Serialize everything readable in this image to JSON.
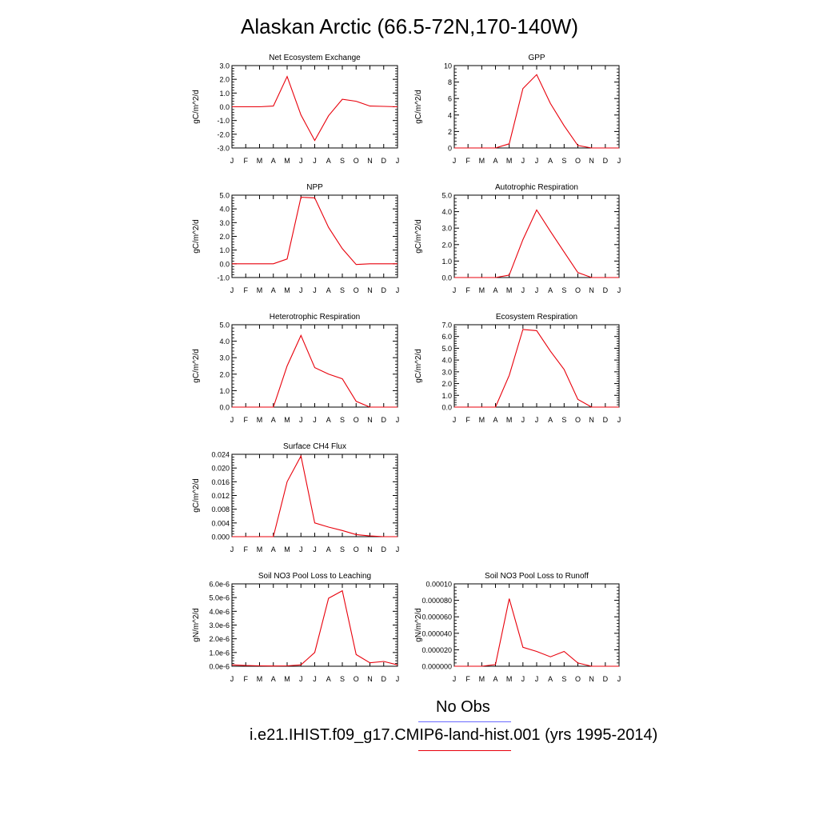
{
  "title": "Alaskan Arctic (66.5-72N,170-140W)",
  "colors": {
    "model": "#e8000b",
    "obs": "#6a6aff",
    "axis": "#000000"
  },
  "legend": {
    "obs_label": "No Obs",
    "model_label": "i.e21.IHIST.f09_g17.CMIP6-land-hist.001 (yrs 1995-2014)"
  },
  "chart_data": [
    {
      "type": "line",
      "title": "Net Ecosystem Exchange",
      "ylabel": "gC/m^2/d",
      "categories": [
        "J",
        "F",
        "M",
        "A",
        "M",
        "J",
        "J",
        "A",
        "S",
        "O",
        "N",
        "D",
        "J"
      ],
      "ylim": [
        -3.0,
        3.0
      ],
      "yticks": [
        "3.0",
        "2.0",
        "1.0",
        "0.0",
        "-1.0",
        "-2.0",
        "-3.0"
      ],
      "values": [
        0.0,
        0.0,
        0.0,
        0.05,
        2.2,
        -0.6,
        -2.45,
        -0.65,
        0.55,
        0.4,
        0.05,
        0.03,
        0.0
      ]
    },
    {
      "type": "line",
      "title": "GPP",
      "ylabel": "gC/m^2/d",
      "categories": [
        "J",
        "F",
        "M",
        "A",
        "M",
        "J",
        "J",
        "A",
        "S",
        "O",
        "N",
        "D",
        "J"
      ],
      "ylim": [
        0,
        10
      ],
      "yticks": [
        "10",
        "8",
        "6",
        "4",
        "2",
        "0"
      ],
      "values": [
        0.0,
        0.0,
        0.0,
        0.0,
        0.5,
        7.2,
        8.9,
        5.4,
        2.7,
        0.3,
        0.0,
        0.0,
        0.0
      ]
    },
    {
      "type": "line",
      "title": "NPP",
      "ylabel": "gC/m^2/d",
      "categories": [
        "J",
        "F",
        "M",
        "A",
        "M",
        "J",
        "J",
        "A",
        "S",
        "O",
        "N",
        "D",
        "J"
      ],
      "ylim": [
        -1.0,
        5.0
      ],
      "yticks": [
        "5.0",
        "4.0",
        "3.0",
        "2.0",
        "1.0",
        "0.0",
        "-1.0"
      ],
      "values": [
        0.0,
        0.0,
        0.0,
        0.0,
        0.35,
        4.85,
        4.8,
        2.65,
        1.1,
        -0.05,
        0.0,
        0.0,
        0.0
      ]
    },
    {
      "type": "line",
      "title": "Autotrophic Respiration",
      "ylabel": "gC/m^2/d",
      "categories": [
        "J",
        "F",
        "M",
        "A",
        "M",
        "J",
        "J",
        "A",
        "S",
        "O",
        "N",
        "D",
        "J"
      ],
      "ylim": [
        0,
        5.0
      ],
      "yticks": [
        "5.0",
        "4.0",
        "3.0",
        "2.0",
        "1.0",
        "0.0"
      ],
      "values": [
        0.0,
        0.0,
        0.0,
        0.0,
        0.15,
        2.3,
        4.1,
        2.8,
        1.55,
        0.3,
        0.0,
        0.0,
        0.0
      ]
    },
    {
      "type": "line",
      "title": "Heterotrophic Respiration",
      "ylabel": "gC/m^2/d",
      "categories": [
        "J",
        "F",
        "M",
        "A",
        "M",
        "J",
        "J",
        "A",
        "S",
        "O",
        "N",
        "D",
        "J"
      ],
      "ylim": [
        0,
        5.0
      ],
      "yticks": [
        "5.0",
        "4.0",
        "3.0",
        "2.0",
        "1.0",
        "0.0"
      ],
      "values": [
        0.0,
        0.0,
        0.0,
        0.0,
        2.5,
        4.35,
        2.4,
        2.0,
        1.72,
        0.35,
        0.0,
        0.0,
        0.0
      ]
    },
    {
      "type": "line",
      "title": "Ecosystem Respiration",
      "ylabel": "gC/m^2/d",
      "categories": [
        "J",
        "F",
        "M",
        "A",
        "M",
        "J",
        "J",
        "A",
        "S",
        "O",
        "N",
        "D",
        "J"
      ],
      "ylim": [
        0,
        7.0
      ],
      "yticks": [
        "7.0",
        "6.0",
        "5.0",
        "4.0",
        "3.0",
        "2.0",
        "1.0",
        "0.0"
      ],
      "values": [
        0.0,
        0.0,
        0.0,
        0.0,
        2.7,
        6.6,
        6.5,
        4.75,
        3.2,
        0.65,
        0.0,
        0.0,
        0.0
      ]
    },
    {
      "type": "line",
      "title": "Surface CH4 Flux",
      "ylabel": "gC/m^2/d",
      "categories": [
        "J",
        "F",
        "M",
        "A",
        "M",
        "J",
        "J",
        "A",
        "S",
        "O",
        "N",
        "D",
        "J"
      ],
      "ylim": [
        0,
        0.024
      ],
      "yticks": [
        "0.024",
        "0.020",
        "0.016",
        "0.012",
        "0.008",
        "0.004",
        "0.000"
      ],
      "values": [
        0.0,
        0.0,
        0.0,
        0.0,
        0.016,
        0.0235,
        0.004,
        0.0028,
        0.0018,
        0.0006,
        0.0002,
        0.0,
        0.0
      ]
    },
    {
      "type": "line",
      "title": "Soil NO3 Pool Loss to Leaching",
      "ylabel": "gN/m^2/d",
      "categories": [
        "J",
        "F",
        "M",
        "A",
        "M",
        "J",
        "J",
        "A",
        "S",
        "O",
        "N",
        "D",
        "J"
      ],
      "ylim": [
        0,
        6e-06
      ],
      "yticks": [
        "6.0e-6",
        "5.0e-6",
        "4.0e-6",
        "3.0e-6",
        "2.0e-6",
        "1.0e-6",
        "0.0e-6"
      ],
      "values": [
        1e-07,
        5e-08,
        3e-08,
        2e-08,
        3e-08,
        1e-07,
        1e-06,
        4.95e-06,
        5.5e-06,
        8.5e-07,
        2.5e-07,
        3.5e-07,
        1e-07
      ]
    },
    {
      "type": "line",
      "title": "Soil NO3 Pool Loss to Runoff",
      "ylabel": "gN/m^2/d",
      "categories": [
        "J",
        "F",
        "M",
        "A",
        "M",
        "J",
        "J",
        "A",
        "S",
        "O",
        "N",
        "D",
        "J"
      ],
      "ylim": [
        0,
        0.0001
      ],
      "yticks": [
        "0.00010",
        "0.000080",
        "0.000060",
        "0.000040",
        "0.000020",
        "0.000000"
      ],
      "values": [
        0.0,
        0.0,
        0.0,
        2e-06,
        8.2e-05,
        2.3e-05,
        1.8e-05,
        1.15e-05,
        1.8e-05,
        4e-06,
        0.0,
        0.0,
        0.0
      ]
    }
  ]
}
